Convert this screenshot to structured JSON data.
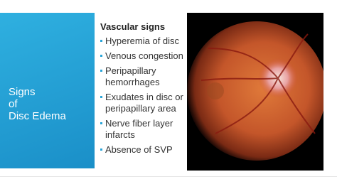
{
  "slide": {
    "side_title": [
      "Signs",
      "of",
      "Disc Edema"
    ],
    "heading": "Vascular signs",
    "bullets": [
      "Hyperemia of disc",
      "Venous congestion",
      "Peripapillary hemorrhages",
      "Exudates in disc or peripapillary area",
      "Nerve fiber layer infarcts",
      "Absence of SVP"
    ]
  }
}
